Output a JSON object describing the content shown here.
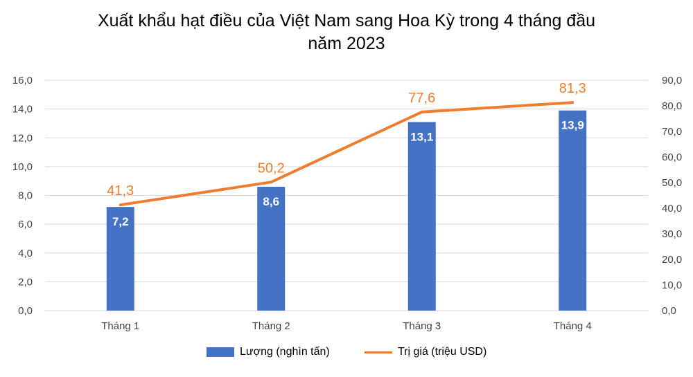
{
  "chart_data": {
    "type": "bar",
    "title": "Xuất khẩu hạt điều của Việt Nam sang Hoa Kỳ trong 4 tháng đầu năm 2023",
    "title_lines": [
      "Xuất khẩu hạt điều của Việt Nam sang Hoa Kỳ trong 4 tháng đầu",
      "năm 2023"
    ],
    "categories": [
      "Tháng 1",
      "Tháng 2",
      "Tháng 3",
      "Tháng 4"
    ],
    "series": [
      {
        "name": "Lượng (nghìn tấn)",
        "type": "bar",
        "axis": "left",
        "color": "#4472C4",
        "values": [
          7.2,
          8.6,
          13.1,
          13.9
        ],
        "labels": [
          "7,2",
          "8,6",
          "13,1",
          "13,9"
        ]
      },
      {
        "name": "Trị giá (triệu USD)",
        "type": "line",
        "axis": "right",
        "color": "#ED7D31",
        "values": [
          41.3,
          50.2,
          77.6,
          81.3
        ],
        "labels": [
          "41,3",
          "50,2",
          "77,6",
          "81,3"
        ]
      }
    ],
    "y_left": {
      "ylim": [
        0,
        16
      ],
      "ticks": [
        "0,0",
        "2,0",
        "4,0",
        "6,0",
        "8,0",
        "10,0",
        "12,0",
        "14,0",
        "16,0"
      ]
    },
    "y_right": {
      "ylim": [
        0,
        90
      ],
      "ticks": [
        "0,0",
        "10,0",
        "20,0",
        "30,0",
        "40,0",
        "50,0",
        "60,0",
        "70,0",
        "80,0",
        "90,0"
      ]
    },
    "grid": true,
    "legend": "bottom"
  }
}
